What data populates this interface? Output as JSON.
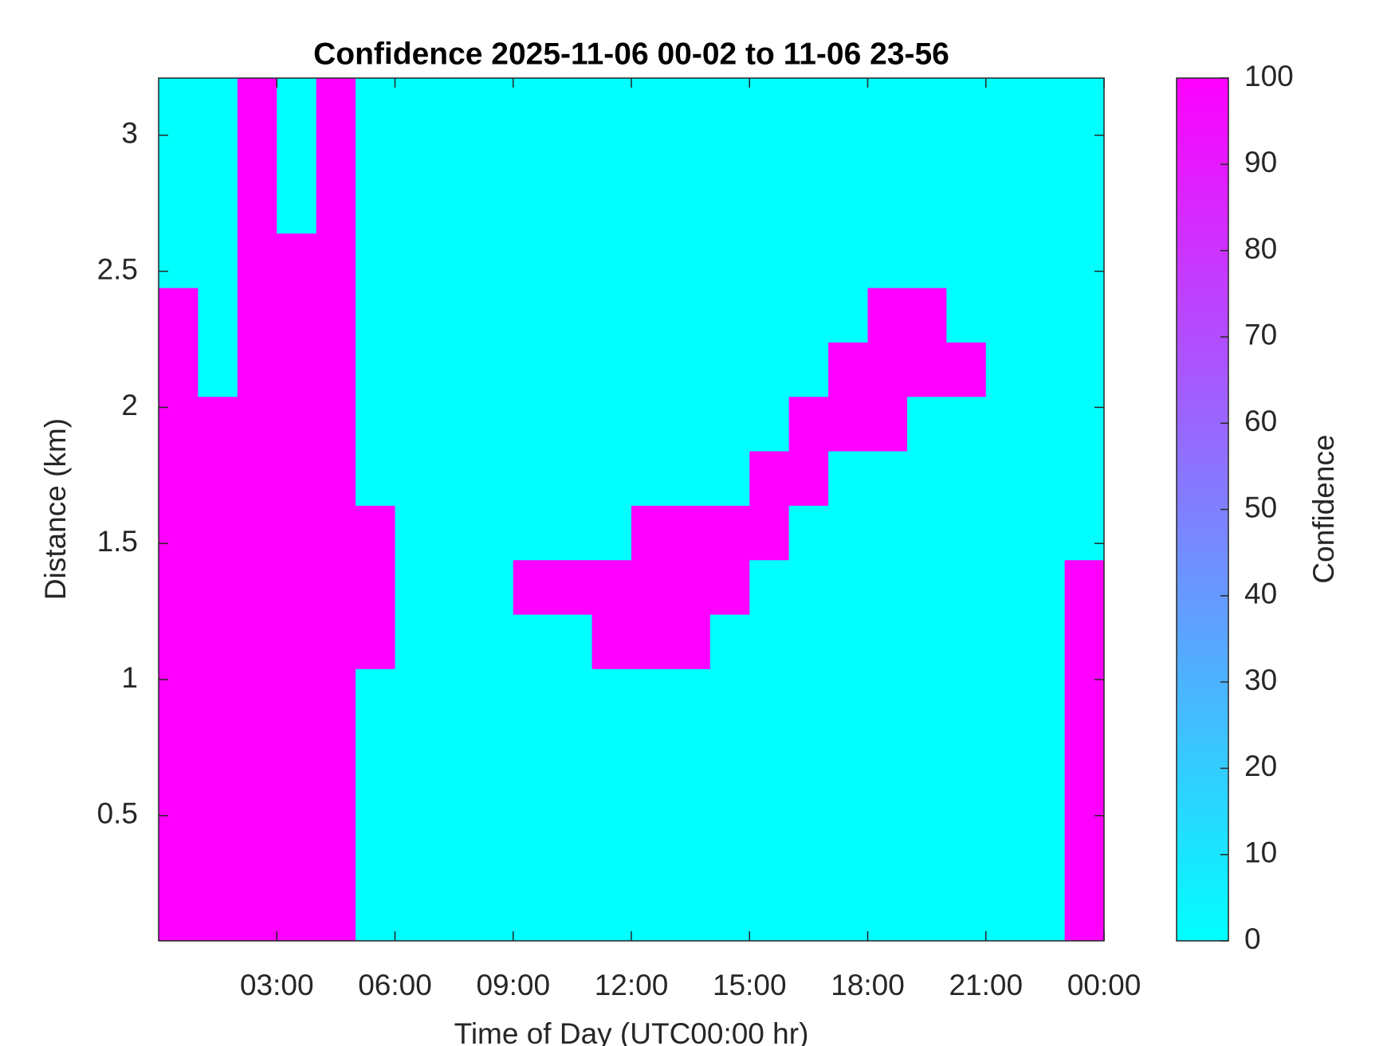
{
  "chart_data": {
    "type": "heatmap",
    "title": "Confidence 2025-11-06 00-02 to 11-06 23-56",
    "x_label": "Time of Day (UTC00:00 hr)",
    "y_label": "Distance (km)",
    "colorbar_label": "Confidence",
    "x": [
      0.5,
      1.5,
      2.5,
      3.5,
      4.5,
      5.5,
      6.5,
      7.5,
      8.5,
      9.5,
      10.5,
      11.5,
      12.5,
      13.5,
      14.5,
      15.5,
      16.5,
      17.5,
      18.5,
      19.5,
      20.5,
      21.5,
      22.5,
      23.5
    ],
    "y": [
      0.14,
      0.34,
      0.54,
      0.74,
      0.94,
      1.14,
      1.34,
      1.54,
      1.74,
      1.94,
      2.14,
      2.34,
      2.54,
      2.74,
      2.94,
      3.14
    ],
    "z": [
      [
        100,
        100,
        100,
        100,
        100,
        0,
        0,
        0,
        0,
        0,
        0,
        0,
        0,
        0,
        0,
        0,
        0,
        0,
        0,
        0,
        0,
        0,
        0,
        100
      ],
      [
        100,
        100,
        100,
        100,
        100,
        0,
        0,
        0,
        0,
        0,
        0,
        0,
        0,
        0,
        0,
        0,
        0,
        0,
        0,
        0,
        0,
        0,
        0,
        100
      ],
      [
        100,
        100,
        100,
        100,
        100,
        0,
        0,
        0,
        0,
        0,
        0,
        0,
        0,
        0,
        0,
        0,
        0,
        0,
        0,
        0,
        0,
        0,
        0,
        100
      ],
      [
        100,
        100,
        100,
        100,
        100,
        0,
        0,
        0,
        0,
        0,
        0,
        0,
        0,
        0,
        0,
        0,
        0,
        0,
        0,
        0,
        0,
        0,
        0,
        100
      ],
      [
        100,
        100,
        100,
        100,
        100,
        0,
        0,
        0,
        0,
        0,
        0,
        0,
        0,
        0,
        0,
        0,
        0,
        0,
        0,
        0,
        0,
        0,
        0,
        100
      ],
      [
        100,
        100,
        100,
        100,
        100,
        100,
        0,
        0,
        0,
        0,
        0,
        100,
        100,
        100,
        0,
        0,
        0,
        0,
        0,
        0,
        0,
        0,
        0,
        100
      ],
      [
        100,
        100,
        100,
        100,
        100,
        100,
        0,
        0,
        0,
        100,
        100,
        100,
        100,
        100,
        100,
        0,
        0,
        0,
        0,
        0,
        0,
        0,
        0,
        100
      ],
      [
        100,
        100,
        100,
        100,
        100,
        100,
        0,
        0,
        0,
        0,
        0,
        0,
        100,
        100,
        100,
        100,
        0,
        0,
        0,
        0,
        0,
        0,
        0,
        0
      ],
      [
        100,
        100,
        100,
        100,
        100,
        0,
        0,
        0,
        0,
        0,
        0,
        0,
        0,
        0,
        0,
        100,
        100,
        0,
        0,
        0,
        0,
        0,
        0,
        0
      ],
      [
        100,
        100,
        100,
        100,
        100,
        0,
        0,
        0,
        0,
        0,
        0,
        0,
        0,
        0,
        0,
        0,
        100,
        100,
        100,
        0,
        0,
        0,
        0,
        0
      ],
      [
        100,
        0,
        100,
        100,
        100,
        0,
        0,
        0,
        0,
        0,
        0,
        0,
        0,
        0,
        0,
        0,
        0,
        100,
        100,
        100,
        100,
        0,
        0,
        0
      ],
      [
        100,
        0,
        100,
        100,
        100,
        0,
        0,
        0,
        0,
        0,
        0,
        0,
        0,
        0,
        0,
        0,
        0,
        0,
        100,
        100,
        0,
        0,
        0,
        0
      ],
      [
        0,
        0,
        100,
        100,
        100,
        0,
        0,
        0,
        0,
        0,
        0,
        0,
        0,
        0,
        0,
        0,
        0,
        0,
        0,
        0,
        0,
        0,
        0,
        0
      ],
      [
        0,
        0,
        100,
        0,
        100,
        0,
        0,
        0,
        0,
        0,
        0,
        0,
        0,
        0,
        0,
        0,
        0,
        0,
        0,
        0,
        0,
        0,
        0,
        0
      ],
      [
        0,
        0,
        100,
        0,
        100,
        0,
        0,
        0,
        0,
        0,
        0,
        0,
        0,
        0,
        0,
        0,
        0,
        0,
        0,
        0,
        0,
        0,
        0,
        0
      ],
      [
        0,
        0,
        100,
        0,
        100,
        0,
        0,
        0,
        0,
        0,
        0,
        0,
        0,
        0,
        0,
        0,
        0,
        0,
        0,
        0,
        0,
        0,
        0,
        0
      ]
    ],
    "xlim": [
      0,
      24
    ],
    "ylim": [
      0.04,
      3.21
    ],
    "xticks": [
      {
        "value": 3,
        "label": "03:00"
      },
      {
        "value": 6,
        "label": "06:00"
      },
      {
        "value": 9,
        "label": "09:00"
      },
      {
        "value": 12,
        "label": "12:00"
      },
      {
        "value": 15,
        "label": "15:00"
      },
      {
        "value": 18,
        "label": "18:00"
      },
      {
        "value": 21,
        "label": "21:00"
      },
      {
        "value": 24,
        "label": "00:00"
      }
    ],
    "yticks": [
      0.5,
      1,
      1.5,
      2,
      2.5,
      3
    ],
    "clim": [
      0,
      100
    ],
    "cticks": [
      0,
      10,
      20,
      30,
      40,
      50,
      60,
      70,
      80,
      90,
      100
    ],
    "colormap": [
      "#00ffff",
      "#ff00ff"
    ]
  }
}
